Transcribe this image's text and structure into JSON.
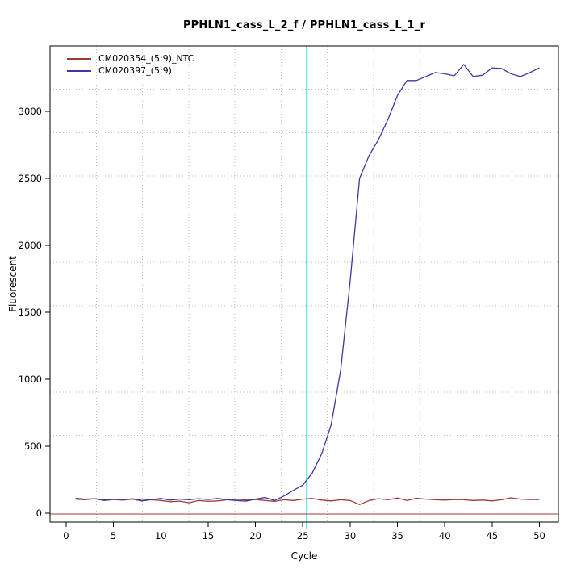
{
  "chart_data": {
    "type": "line",
    "title": "PPHLN1_cass_L_2_f / PPHLN1_cass_L_1_r",
    "xlabel": "Cycle",
    "ylabel": "Fluorescent",
    "x_ticks": [
      0,
      5,
      10,
      15,
      20,
      25,
      30,
      35,
      40,
      45,
      50
    ],
    "y_ticks": [
      0,
      500,
      1000,
      1500,
      2000,
      2500,
      3000
    ],
    "xlim": [
      -1.7,
      52
    ],
    "ylim": [
      -66,
      3488
    ],
    "grid": {
      "divisions": 11,
      "color": "#bdbdbd",
      "style": "dotted"
    },
    "threshold_line": {
      "cycle": 25.4,
      "color": "#00e6e6",
      "orientation": "vertical"
    },
    "baseline_line": {
      "value": 0,
      "color": "#a03a3a",
      "orientation": "horizontal"
    },
    "legend_position": "top-left",
    "cycles": [
      1,
      2,
      3,
      4,
      5,
      6,
      7,
      8,
      9,
      10,
      11,
      12,
      13,
      14,
      15,
      16,
      17,
      18,
      19,
      20,
      21,
      22,
      23,
      24,
      25,
      26,
      27,
      28,
      29,
      30,
      31,
      32,
      33,
      34,
      35,
      36,
      37,
      38,
      39,
      40,
      41,
      42,
      43,
      44,
      45,
      46,
      47,
      48,
      49,
      50
    ],
    "series": [
      {
        "name": "CM020354_(5:9)_NTC",
        "color": "#a03a3a",
        "values": [
          105,
          100,
          108,
          95,
          102,
          98,
          105,
          92,
          100,
          95,
          85,
          90,
          78,
          95,
          88,
          92,
          100,
          105,
          98,
          102,
          95,
          88,
          100,
          95,
          105,
          110,
          98,
          92,
          100,
          95,
          65,
          95,
          108,
          100,
          113,
          95,
          112,
          105,
          100,
          98,
          102,
          100,
          95,
          98,
          92,
          100,
          115,
          105,
          102,
          102
        ]
      },
      {
        "name": "CM020397_(5:9)",
        "color": "#3a3aa0",
        "values": [
          112,
          105,
          108,
          98,
          105,
          100,
          108,
          95,
          102,
          110,
          98,
          105,
          100,
          108,
          102,
          110,
          100,
          95,
          90,
          105,
          118,
          95,
          128,
          170,
          210,
          300,
          445,
          660,
          1070,
          1730,
          2500,
          2670,
          2790,
          2940,
          3120,
          3230,
          3230,
          3260,
          3290,
          3280,
          3265,
          3350,
          3260,
          3270,
          3325,
          3320,
          3280,
          3260,
          3290,
          3325
        ]
      }
    ]
  }
}
